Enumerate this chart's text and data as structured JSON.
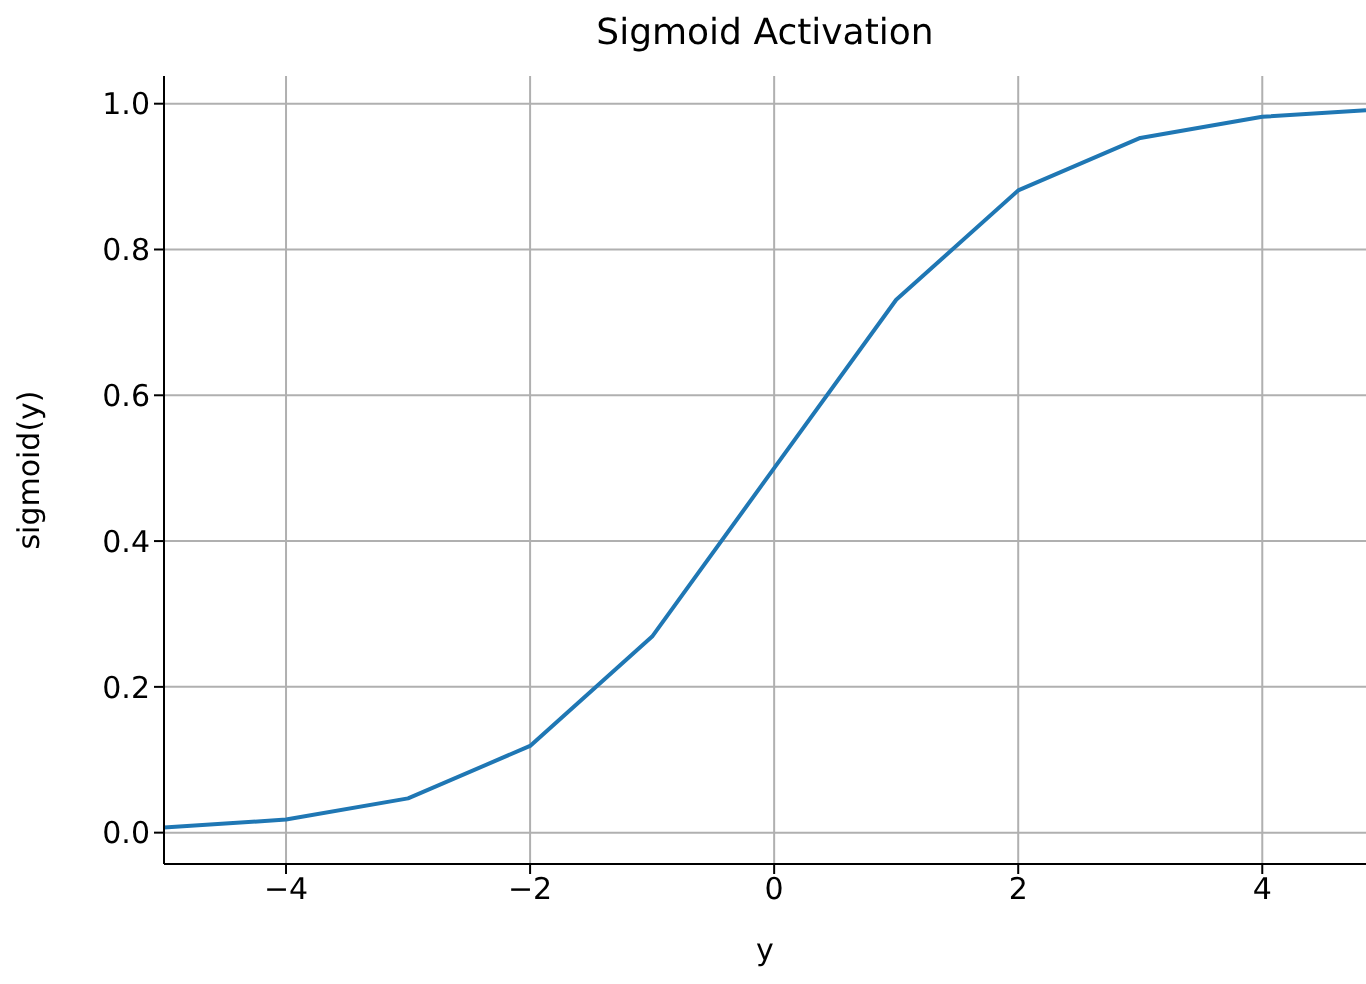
{
  "chart_data": {
    "type": "line",
    "title": "Sigmoid Activation",
    "xlabel": "y",
    "ylabel": "sigmoid(y)",
    "x": [
      -5,
      -4,
      -3,
      -2,
      -1,
      0,
      1,
      2,
      3,
      4,
      4.85
    ],
    "series": [
      {
        "color": "#1f77b4",
        "values": [
          0.007,
          0.018,
          0.047,
          0.119,
          0.269,
          0.5,
          0.731,
          0.881,
          0.953,
          0.982,
          0.991
        ]
      }
    ],
    "xlim": [
      -5,
      4.85
    ],
    "xticks": [
      {
        "value": -4,
        "label": "−4"
      },
      {
        "value": -2,
        "label": "−2"
      },
      0,
      2,
      4
    ],
    "ylim": [
      -0.043,
      1.038
    ],
    "yticks": [
      {
        "value": 0,
        "label": "0.0"
      },
      0.2,
      0.4,
      0.6,
      0.8,
      {
        "value": 1,
        "label": "1.0"
      }
    ],
    "grid": true,
    "marker": "none",
    "line_style": "solid",
    "legend": false
  }
}
